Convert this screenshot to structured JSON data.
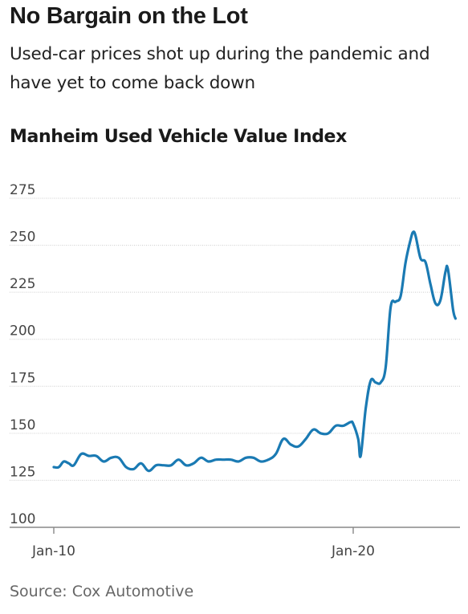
{
  "header": {
    "title": "No Bargain on the Lot",
    "subtitle": "Used-car prices shot up during the pandemic and have yet to come back down"
  },
  "footer": {
    "source": "Source: Cox Automotive"
  },
  "colors": {
    "line": "#1a7ab3",
    "grid": "#cccccc",
    "axis": "#888888",
    "text": "#444444"
  },
  "chart_data": {
    "type": "line",
    "title": "Manheim Used Vehicle Value Index",
    "xlabel": "",
    "ylabel": "",
    "ylim": [
      100,
      275
    ],
    "yticks": [
      275,
      250,
      225,
      200,
      175,
      150,
      125,
      100
    ],
    "xticks": [
      {
        "x": "2010-01",
        "label": "Jan-10"
      },
      {
        "x": "2020-01",
        "label": "Jan-20"
      }
    ],
    "xlim": [
      "2010-01",
      "2023-07"
    ],
    "grid": true,
    "series": [
      {
        "values": [
          [
            "2010-01",
            132
          ],
          [
            "2010-03",
            132
          ],
          [
            "2010-05",
            135
          ],
          [
            "2010-07",
            134
          ],
          [
            "2010-09",
            133
          ],
          [
            "2010-12",
            139
          ],
          [
            "2011-03",
            138
          ],
          [
            "2011-06",
            138
          ],
          [
            "2011-09",
            135
          ],
          [
            "2011-12",
            137
          ],
          [
            "2012-03",
            137
          ],
          [
            "2012-06",
            132
          ],
          [
            "2012-09",
            131
          ],
          [
            "2012-12",
            134
          ],
          [
            "2013-03",
            130
          ],
          [
            "2013-06",
            133
          ],
          [
            "2013-09",
            133
          ],
          [
            "2013-12",
            133
          ],
          [
            "2014-03",
            136
          ],
          [
            "2014-06",
            133
          ],
          [
            "2014-09",
            134
          ],
          [
            "2014-12",
            137
          ],
          [
            "2015-03",
            135
          ],
          [
            "2015-06",
            136
          ],
          [
            "2015-09",
            136
          ],
          [
            "2015-12",
            136
          ],
          [
            "2016-03",
            135
          ],
          [
            "2016-06",
            137
          ],
          [
            "2016-09",
            137
          ],
          [
            "2016-12",
            135
          ],
          [
            "2017-03",
            136
          ],
          [
            "2017-06",
            139
          ],
          [
            "2017-09",
            147
          ],
          [
            "2017-12",
            144
          ],
          [
            "2018-03",
            143
          ],
          [
            "2018-06",
            147
          ],
          [
            "2018-09",
            152
          ],
          [
            "2018-12",
            150
          ],
          [
            "2019-03",
            150
          ],
          [
            "2019-06",
            154
          ],
          [
            "2019-09",
            154
          ],
          [
            "2019-12",
            156
          ],
          [
            "2020-01",
            155
          ],
          [
            "2020-03",
            147
          ],
          [
            "2020-04",
            138
          ],
          [
            "2020-06",
            163
          ],
          [
            "2020-08",
            178
          ],
          [
            "2020-10",
            177
          ],
          [
            "2020-12",
            177
          ],
          [
            "2021-02",
            185
          ],
          [
            "2021-04",
            217
          ],
          [
            "2021-06",
            220
          ],
          [
            "2021-08",
            223
          ],
          [
            "2021-10",
            241
          ],
          [
            "2021-12",
            253
          ],
          [
            "2022-01",
            257
          ],
          [
            "2022-02",
            255
          ],
          [
            "2022-04",
            243
          ],
          [
            "2022-06",
            241
          ],
          [
            "2022-08",
            229
          ],
          [
            "2022-10",
            219
          ],
          [
            "2022-12",
            221
          ],
          [
            "2023-02",
            236
          ],
          [
            "2023-03",
            237
          ],
          [
            "2023-05",
            216
          ],
          [
            "2023-06",
            211
          ]
        ]
      }
    ]
  }
}
